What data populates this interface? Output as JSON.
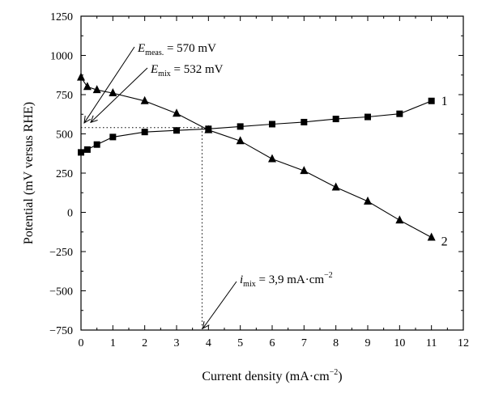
{
  "chart_data": {
    "type": "line",
    "xlabel": "Current density (mA·cm",
    "xlabel_sup": "−2",
    "xlabel_close": ")",
    "ylabel": "Potential (mV versus RHE)",
    "xlim": [
      0,
      12
    ],
    "ylim": [
      -750,
      1250
    ],
    "x_ticks": [
      0,
      1,
      2,
      3,
      4,
      5,
      6,
      7,
      8,
      9,
      10,
      11,
      12
    ],
    "y_ticks": [
      -750,
      -500,
      -250,
      0,
      250,
      500,
      750,
      1000,
      1250
    ],
    "grid": false,
    "series": [
      {
        "name": "1",
        "marker": "square",
        "x": [
          0,
          0.2,
          0.5,
          1,
          2,
          3,
          4,
          5,
          6,
          7,
          8,
          9,
          10,
          11
        ],
        "y": [
          382,
          400,
          432,
          480,
          512,
          522,
          532,
          547,
          562,
          575,
          595,
          608,
          628,
          710
        ]
      },
      {
        "name": "2",
        "marker": "triangle",
        "x": [
          0,
          0.2,
          0.5,
          1,
          2,
          3,
          4,
          5,
          6,
          7,
          8,
          9,
          10,
          11
        ],
        "y": [
          860,
          800,
          780,
          760,
          710,
          630,
          525,
          455,
          340,
          265,
          160,
          70,
          -50,
          -160
        ]
      }
    ],
    "annotations": {
      "e_meas": {
        "letter": "E",
        "sub": "meas.",
        "text": " = 570 mV",
        "value_mV": 570
      },
      "e_mix": {
        "letter": "E",
        "sub": "mix",
        "text": " = 532 mV",
        "value_mV": 532
      },
      "i_mix": {
        "letter": "i",
        "sub": "mix",
        "text": " = 3,9 mA·cm",
        "sup": "−2",
        "value": 3.9
      }
    },
    "guide": {
      "x": 3.8,
      "y": 540
    }
  }
}
